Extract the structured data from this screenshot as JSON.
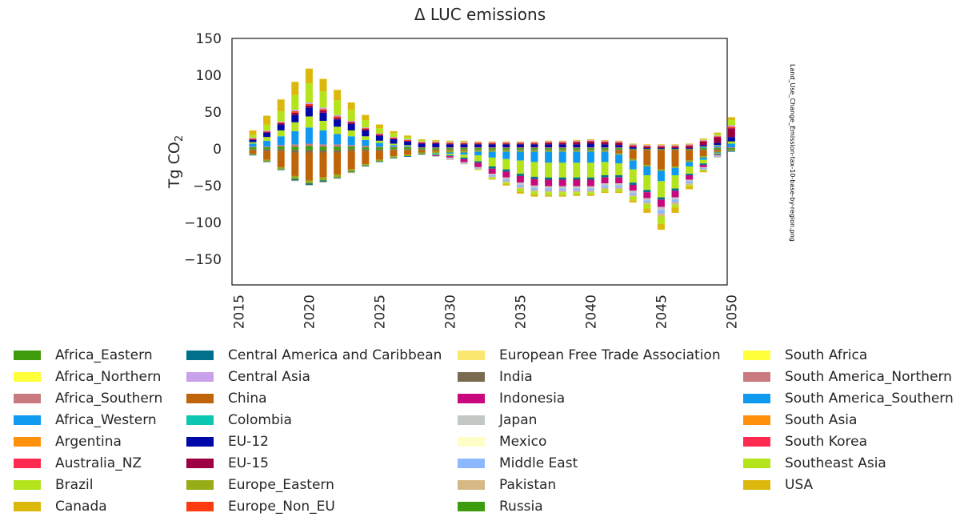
{
  "chart_data": {
    "type": "bar",
    "stacked": true,
    "title": "Δ LUC emissions",
    "ylabel": "Tg CO",
    "ylabel_sub": "2",
    "xlabel": "",
    "ylim": [
      -185,
      150
    ],
    "yticks": [
      150,
      100,
      50,
      0,
      -50,
      -100,
      -150
    ],
    "ytick_labels": [
      "150",
      "100",
      "50",
      "0",
      "−50",
      "−100",
      "−150"
    ],
    "xtick_labels": [
      "2015",
      "2020",
      "2025",
      "2030",
      "2035",
      "2040",
      "2045",
      "2050"
    ],
    "x": [
      2016,
      2017,
      2018,
      2019,
      2020,
      2021,
      2022,
      2023,
      2024,
      2025,
      2026,
      2027,
      2028,
      2029,
      2030,
      2031,
      2032,
      2033,
      2034,
      2035,
      2036,
      2037,
      2038,
      2039,
      2040,
      2041,
      2042,
      2043,
      2044,
      2045,
      2046,
      2047,
      2048,
      2049,
      2050
    ],
    "grid": false,
    "legend_position": "bottom",
    "side_note": "Land_Use_Change_Emission-tax-10-base-by-region.png",
    "series": [
      {
        "name": "Africa_Eastern",
        "color": "#3f9b0b"
      },
      {
        "name": "Africa_Northern",
        "color": "#ffff3a"
      },
      {
        "name": "Africa_Southern",
        "color": "#c87a7f"
      },
      {
        "name": "Africa_Western",
        "color": "#0f9af0"
      },
      {
        "name": "Argentina",
        "color": "#ff900c"
      },
      {
        "name": "Australia_NZ",
        "color": "#ff2a50"
      },
      {
        "name": "Brazil",
        "color": "#b4e41c"
      },
      {
        "name": "Canada",
        "color": "#dcb80c"
      },
      {
        "name": "Central America and Caribbean",
        "color": "#00708c"
      },
      {
        "name": "Central Asia",
        "color": "#c9a0ec"
      },
      {
        "name": "China",
        "color": "#c0640a"
      },
      {
        "name": "Colombia",
        "color": "#0cc8b0"
      },
      {
        "name": "EU-12",
        "color": "#0008a8"
      },
      {
        "name": "EU-15",
        "color": "#9c0040"
      },
      {
        "name": "Europe_Eastern",
        "color": "#98ac18"
      },
      {
        "name": "Europe_Non_EU",
        "color": "#fe3a10"
      },
      {
        "name": "European Free Trade Association",
        "color": "#fae770"
      },
      {
        "name": "India",
        "color": "#7a6a4e"
      },
      {
        "name": "Indonesia",
        "color": "#c8087c"
      },
      {
        "name": "Japan",
        "color": "#c4c8c4"
      },
      {
        "name": "Mexico",
        "color": "#fffdc8"
      },
      {
        "name": "Middle East",
        "color": "#8cb8fe"
      },
      {
        "name": "Pakistan",
        "color": "#d6b884"
      },
      {
        "name": "Russia",
        "color": "#3c9c0c"
      },
      {
        "name": "South Africa",
        "color": "#ffff3a"
      },
      {
        "name": "South America_Northern",
        "color": "#c87a7f"
      },
      {
        "name": "South America_Southern",
        "color": "#0f9af0"
      },
      {
        "name": "South Asia",
        "color": "#ff900c"
      },
      {
        "name": "South Korea",
        "color": "#ff2a50"
      },
      {
        "name": "Southeast Asia",
        "color": "#b4e41c"
      },
      {
        "name": "USA",
        "color": "#dcb80c"
      }
    ],
    "positive_stack": [
      {
        "series": "Africa_Eastern",
        "values": [
          2,
          2,
          3,
          3,
          4,
          3,
          3,
          3,
          2,
          2,
          2,
          2,
          1,
          1,
          1,
          1,
          1,
          1,
          1,
          1,
          1,
          1,
          1,
          1,
          1,
          1,
          1,
          0,
          0,
          0,
          0,
          0,
          1,
          1,
          1
        ]
      },
      {
        "series": "Africa_Southern",
        "values": [
          1,
          1,
          2,
          3,
          3,
          3,
          3,
          2,
          2,
          1,
          1,
          1,
          1,
          1,
          1,
          1,
          1,
          1,
          1,
          1,
          1,
          1,
          1,
          1,
          1,
          1,
          1,
          0,
          0,
          0,
          0,
          0,
          0,
          1,
          1
        ]
      },
      {
        "series": "South America_Southern",
        "values": [
          4,
          8,
          12,
          18,
          22,
          19,
          14,
          12,
          8,
          5,
          2,
          1,
          0,
          0,
          0,
          0,
          0,
          0,
          0,
          0,
          0,
          0,
          0,
          0,
          0,
          0,
          0,
          0,
          0,
          0,
          0,
          0,
          1,
          2,
          5
        ]
      },
      {
        "series": "Brazil",
        "values": [
          2,
          5,
          8,
          12,
          15,
          13,
          10,
          8,
          5,
          3,
          2,
          1,
          0,
          0,
          0,
          0,
          0,
          0,
          0,
          0,
          0,
          0,
          0,
          0,
          0,
          0,
          0,
          0,
          0,
          0,
          0,
          0,
          1,
          1,
          3
        ]
      },
      {
        "series": "EU-12",
        "values": [
          3,
          6,
          8,
          10,
          12,
          11,
          10,
          9,
          8,
          7,
          6,
          5,
          5,
          5,
          4,
          4,
          4,
          4,
          4,
          4,
          4,
          4,
          4,
          4,
          5,
          4,
          3,
          2,
          1,
          1,
          1,
          1,
          2,
          3,
          6
        ]
      },
      {
        "series": "EU-15",
        "values": [
          1,
          1,
          2,
          3,
          3,
          3,
          2,
          2,
          2,
          1,
          1,
          1,
          1,
          1,
          1,
          1,
          1,
          1,
          1,
          1,
          1,
          2,
          2,
          3,
          3,
          3,
          3,
          2,
          2,
          2,
          2,
          3,
          5,
          8,
          12
        ]
      },
      {
        "series": "Europe_Non_EU",
        "values": [
          1,
          1,
          1,
          2,
          2,
          2,
          2,
          1,
          1,
          1,
          1,
          1,
          1,
          1,
          1,
          1,
          1,
          1,
          1,
          1,
          1,
          1,
          1,
          1,
          1,
          1,
          1,
          1,
          1,
          1,
          1,
          1,
          1,
          1,
          2
        ]
      },
      {
        "series": "Central Asia",
        "values": [
          1,
          1,
          1,
          2,
          2,
          2,
          2,
          1,
          1,
          1,
          1,
          1,
          1,
          1,
          1,
          1,
          1,
          1,
          1,
          1,
          1,
          1,
          1,
          1,
          1,
          1,
          1,
          1,
          1,
          1,
          1,
          1,
          1,
          1,
          2
        ]
      },
      {
        "series": "Southeast Asia",
        "values": [
          4,
          8,
          14,
          20,
          26,
          22,
          20,
          15,
          10,
          7,
          5,
          3,
          2,
          1,
          1,
          1,
          0,
          0,
          0,
          0,
          0,
          0,
          0,
          0,
          0,
          0,
          0,
          0,
          0,
          0,
          0,
          0,
          1,
          2,
          7
        ]
      },
      {
        "series": "USA",
        "values": [
          6,
          12,
          16,
          18,
          20,
          17,
          14,
          10,
          7,
          5,
          3,
          2,
          1,
          1,
          1,
          1,
          1,
          1,
          1,
          1,
          1,
          1,
          1,
          1,
          1,
          1,
          1,
          1,
          1,
          1,
          1,
          1,
          1,
          2,
          4
        ]
      }
    ],
    "negative_stack": [
      {
        "series": "Africa_Eastern",
        "values": [
          -1,
          -1,
          -1,
          -2,
          -2,
          -2,
          -2,
          -1,
          -1,
          -1,
          -1,
          -1,
          -1,
          -1,
          -1,
          -1,
          -1,
          -1,
          -1,
          -1,
          -1,
          -1,
          -1,
          -1,
          -1,
          -1,
          -1,
          -1,
          -1,
          -1,
          -1,
          -1,
          -1,
          -1,
          -1
        ]
      },
      {
        "series": "India",
        "values": [
          -1,
          -2,
          -2,
          -3,
          -3,
          -3,
          -3,
          -2,
          -2,
          -2,
          -1,
          -1,
          -1,
          -1,
          -1,
          -1,
          -1,
          -1,
          -1,
          -1,
          -1,
          -1,
          -1,
          -1,
          -1,
          -1,
          -1,
          -1,
          -1,
          -1,
          -1,
          -1,
          -1,
          -1,
          -1
        ]
      },
      {
        "series": "China",
        "values": [
          -5,
          -12,
          -22,
          -32,
          -38,
          -34,
          -30,
          -25,
          -18,
          -12,
          -8,
          -6,
          -3,
          -2,
          -1,
          -1,
          0,
          0,
          0,
          0,
          0,
          0,
          0,
          0,
          0,
          0,
          -4,
          -12,
          -20,
          -26,
          -22,
          -14,
          -8,
          -2,
          0
        ]
      },
      {
        "series": "Europe_Eastern",
        "values": [
          -1,
          -2,
          -3,
          -4,
          -4,
          -4,
          -4,
          -3,
          -2,
          -2,
          -2,
          -2,
          -2,
          -2,
          -2,
          -2,
          -2,
          -2,
          -2,
          -2,
          -2,
          -2,
          -2,
          -2,
          -2,
          -2,
          -2,
          -2,
          -2,
          -2,
          -2,
          -2,
          -2,
          -1,
          -1
        ]
      },
      {
        "series": "South America_Southern",
        "values": [
          0,
          0,
          0,
          0,
          0,
          0,
          0,
          0,
          0,
          0,
          0,
          0,
          0,
          -1,
          -2,
          -3,
          -5,
          -8,
          -10,
          -12,
          -14,
          -15,
          -15,
          -15,
          -15,
          -14,
          -12,
          -12,
          -12,
          -14,
          -10,
          -6,
          -3,
          -1,
          0
        ]
      },
      {
        "series": "Southeast Asia",
        "values": [
          0,
          0,
          0,
          0,
          0,
          0,
          0,
          0,
          0,
          0,
          0,
          0,
          0,
          -1,
          -2,
          -4,
          -8,
          -12,
          -14,
          -18,
          -20,
          -20,
          -20,
          -20,
          -20,
          -18,
          -16,
          -18,
          -20,
          -22,
          -18,
          -10,
          -5,
          -1,
          0
        ]
      },
      {
        "series": "Central America and Caribbean",
        "values": [
          -1,
          -1,
          -1,
          -2,
          -2,
          -2,
          -1,
          -1,
          -1,
          -1,
          -1,
          -1,
          -1,
          -1,
          -1,
          -2,
          -2,
          -3,
          -3,
          -3,
          -3,
          -3,
          -3,
          -3,
          -3,
          -3,
          -3,
          -3,
          -3,
          -3,
          -3,
          -2,
          -2,
          -1,
          -1
        ]
      },
      {
        "series": "Indonesia",
        "values": [
          0,
          0,
          0,
          0,
          0,
          0,
          0,
          0,
          0,
          0,
          0,
          0,
          0,
          -1,
          -2,
          -4,
          -6,
          -7,
          -8,
          -9,
          -9,
          -9,
          -9,
          -9,
          -9,
          -8,
          -8,
          -8,
          -8,
          -10,
          -9,
          -6,
          -3,
          -1,
          0
        ]
      },
      {
        "series": "Japan",
        "values": [
          0,
          0,
          0,
          0,
          0,
          0,
          0,
          0,
          0,
          0,
          0,
          0,
          0,
          -1,
          -1,
          -1,
          -1,
          -2,
          -3,
          -3,
          -3,
          -3,
          -3,
          -3,
          -3,
          -3,
          -3,
          -3,
          -3,
          -4,
          -3,
          -2,
          -1,
          -1,
          0
        ]
      },
      {
        "series": "Middle East",
        "values": [
          0,
          0,
          0,
          0,
          0,
          0,
          0,
          0,
          0,
          0,
          0,
          0,
          0,
          0,
          -1,
          -1,
          -1,
          -2,
          -2,
          -3,
          -3,
          -3,
          -3,
          -3,
          -3,
          -3,
          -3,
          -3,
          -3,
          -5,
          -4,
          -3,
          -2,
          -1,
          0
        ]
      },
      {
        "series": "Pakistan",
        "values": [
          0,
          0,
          0,
          -1,
          -1,
          -1,
          -1,
          -1,
          0,
          0,
          0,
          0,
          0,
          0,
          -1,
          -1,
          -1,
          -1,
          -2,
          -2,
          -2,
          -2,
          -2,
          -2,
          -2,
          -2,
          -2,
          -2,
          -2,
          -4,
          -3,
          -2,
          -1,
          -1,
          0
        ]
      },
      {
        "series": "Brazil",
        "values": [
          0,
          0,
          0,
          0,
          0,
          0,
          0,
          0,
          0,
          0,
          0,
          0,
          0,
          0,
          0,
          0,
          -1,
          -2,
          -2,
          -4,
          -4,
          -4,
          -4,
          -3,
          -3,
          -3,
          -3,
          -5,
          -6,
          -10,
          -4,
          -2,
          -1,
          0,
          0
        ]
      },
      {
        "series": "USA",
        "values": [
          0,
          0,
          0,
          0,
          0,
          0,
          0,
          0,
          0,
          0,
          0,
          0,
          0,
          0,
          0,
          0,
          0,
          -1,
          -2,
          -3,
          -3,
          -2,
          -2,
          -2,
          -2,
          -2,
          -2,
          -3,
          -6,
          -8,
          -7,
          -4,
          -2,
          0,
          0
        ]
      }
    ]
  }
}
